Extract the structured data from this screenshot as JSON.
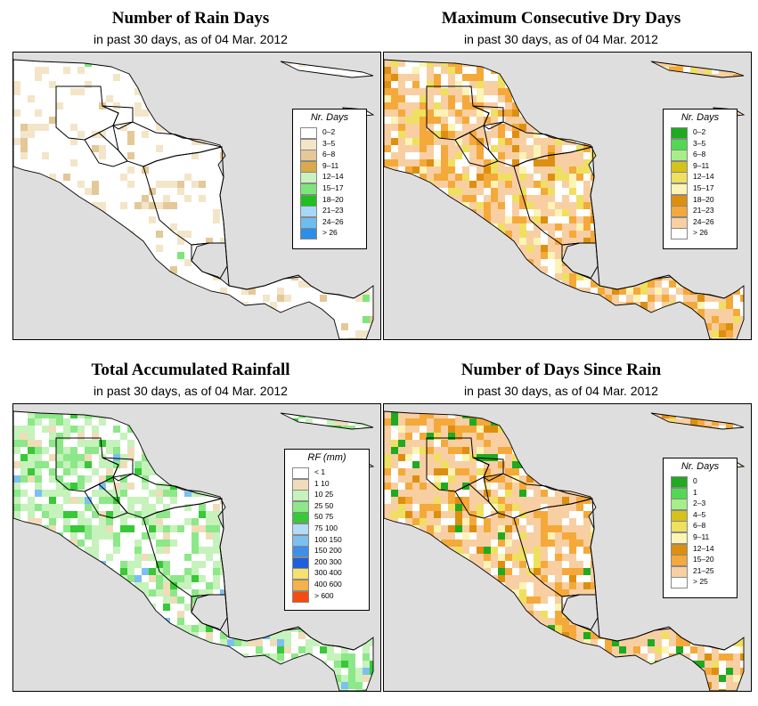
{
  "panels": [
    {
      "id": "rain-days",
      "title": "Number of Rain Days",
      "subtitle": "in past 30 days, as of  04 Mar. 2012",
      "legend": {
        "title": "Nr. Days",
        "items": [
          {
            "label": "0–2",
            "color": "#ffffff"
          },
          {
            "label": "3–5",
            "color": "#f3e5c8"
          },
          {
            "label": "6–8",
            "color": "#e4c898"
          },
          {
            "label": "9–11",
            "color": "#d9a94a"
          },
          {
            "label": "12–14",
            "color": "#c9f2c1"
          },
          {
            "label": "15–17",
            "color": "#7de67b"
          },
          {
            "label": "18–20",
            "color": "#1fbf1f"
          },
          {
            "label": "21–23",
            "color": "#a8d8f5"
          },
          {
            "label": "24–26",
            "color": "#6ebcf0"
          },
          {
            "label": "> 26",
            "color": "#2a8fe6"
          }
        ]
      }
    },
    {
      "id": "dry-days",
      "title": "Maximum Consecutive Dry Days",
      "subtitle": "in past 30 days, as of  04 Mar. 2012",
      "legend": {
        "title": "Nr. Days",
        "items": [
          {
            "label": "0–2",
            "color": "#1faa1f"
          },
          {
            "label": "3–5",
            "color": "#52d852"
          },
          {
            "label": "6–8",
            "color": "#a6ee8a"
          },
          {
            "label": "9–11",
            "color": "#d6c21a"
          },
          {
            "label": "12–14",
            "color": "#efe060"
          },
          {
            "label": "15–17",
            "color": "#fbf4b5"
          },
          {
            "label": "18–20",
            "color": "#dd8f10"
          },
          {
            "label": "21–23",
            "color": "#f5a93a"
          },
          {
            "label": "24–26",
            "color": "#f8cfa2"
          },
          {
            "label": "> 26",
            "color": "#ffffff"
          }
        ]
      }
    },
    {
      "id": "rainfall",
      "title": "Total Accumulated Rainfall",
      "subtitle": "in past 30 days, as of  04 Mar. 2012",
      "legend": {
        "title": "RF (mm)",
        "items": [
          {
            "label": "< 1",
            "color": "#ffffff"
          },
          {
            "label": "1   10",
            "color": "#f0dcb9"
          },
          {
            "label": "10   25",
            "color": "#c6f2bb"
          },
          {
            "label": "25   50",
            "color": "#8ce888"
          },
          {
            "label": "50   75",
            "color": "#38c838"
          },
          {
            "label": "75   100",
            "color": "#b2dcf5"
          },
          {
            "label": "100   150",
            "color": "#7cc0f0"
          },
          {
            "label": "150   200",
            "color": "#3f8ee8"
          },
          {
            "label": "200   300",
            "color": "#1f5fd8"
          },
          {
            "label": "300   400",
            "color": "#f5e070"
          },
          {
            "label": "400   600",
            "color": "#f5b24a"
          },
          {
            "label": "> 600",
            "color": "#f54a10"
          }
        ]
      }
    },
    {
      "id": "since-rain",
      "title": "Number of Days Since Rain",
      "subtitle": "in past 30 days, as of  04 Mar. 2012",
      "legend": {
        "title": "Nr. Days",
        "items": [
          {
            "label": "0",
            "color": "#1faa1f"
          },
          {
            "label": "1",
            "color": "#52d852"
          },
          {
            "label": "2–3",
            "color": "#a6ee8a"
          },
          {
            "label": "4–5",
            "color": "#d6c21a"
          },
          {
            "label": "6–8",
            "color": "#efe060"
          },
          {
            "label": "9–11",
            "color": "#fbf4b5"
          },
          {
            "label": "12–14",
            "color": "#dd8f10"
          },
          {
            "label": "15–20",
            "color": "#f5a93a"
          },
          {
            "label": "21–25",
            "color": "#f8cfa2"
          },
          {
            "label": "> 25",
            "color": "#ffffff"
          }
        ]
      }
    }
  ]
}
